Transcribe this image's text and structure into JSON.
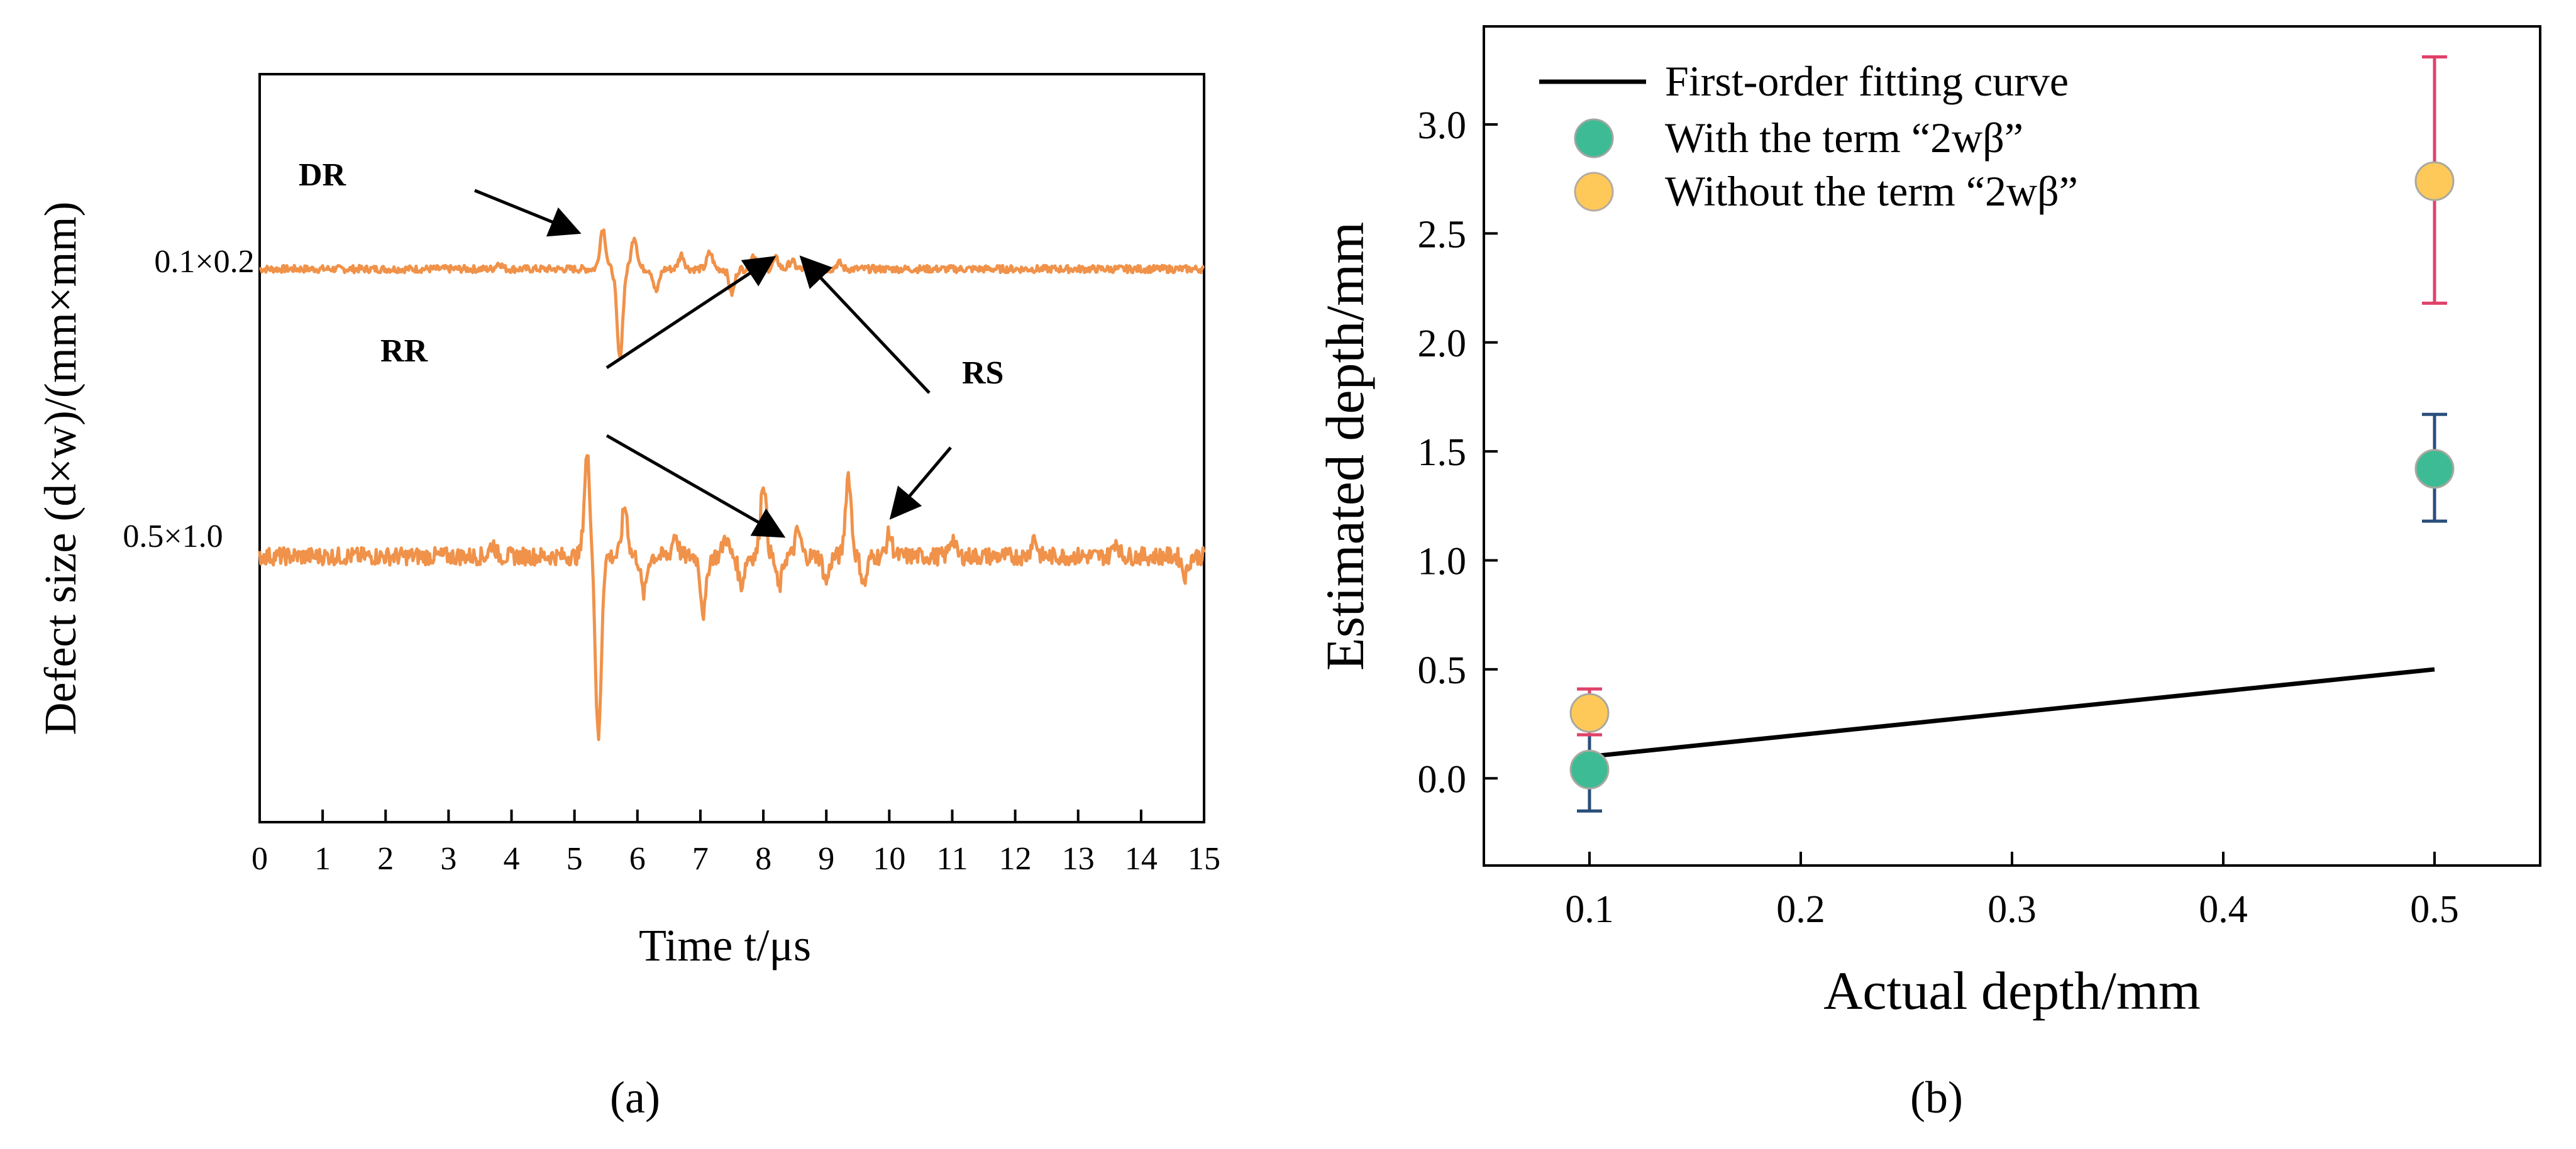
{
  "chart_data": [
    {
      "type": "line",
      "panel_label": "(a)",
      "xlabel": "Time t/μs",
      "ylabel": "Defect size (d×w)/(mm×mm)",
      "xlim": [
        0,
        15
      ],
      "x_ticks": [
        "0",
        "1",
        "2",
        "3",
        "4",
        "5",
        "6",
        "7",
        "8",
        "9",
        "10",
        "11",
        "12",
        "13",
        "14",
        "15"
      ],
      "y_tick_labels": [
        "0.1×0.2",
        "0.5×1.0"
      ],
      "series": [
        {
          "name": "0.1×0.2",
          "color": "#F0924A",
          "description": "baseline signal with arrivals near 5.4–6.0 μs and 7–9 μs",
          "events": [
            {
              "t": 3.8,
              "amp": 0.15
            },
            {
              "t": 5.45,
              "amp": 1.0
            },
            {
              "t": 5.72,
              "amp": -2.2
            },
            {
              "t": 5.95,
              "amp": 0.8
            },
            {
              "t": 6.3,
              "amp": -0.55
            },
            {
              "t": 6.7,
              "amp": 0.35
            },
            {
              "t": 7.15,
              "amp": 0.4
            },
            {
              "t": 7.5,
              "amp": -0.6
            },
            {
              "t": 7.85,
              "amp": 0.35
            },
            {
              "t": 8.2,
              "amp": 0.25
            },
            {
              "t": 8.45,
              "amp": 0.2
            },
            {
              "t": 8.75,
              "amp": -0.2
            },
            {
              "t": 9.2,
              "amp": 0.15
            }
          ]
        },
        {
          "name": "0.5×1.0",
          "color": "#F0924A",
          "description": "signal with strong arrival near 5.2–5.4 μs and later reflections",
          "events": [
            {
              "t": 3.7,
              "amp": 0.2
            },
            {
              "t": 5.2,
              "amp": 1.6
            },
            {
              "t": 5.38,
              "amp": -2.9
            },
            {
              "t": 5.8,
              "amp": 0.8
            },
            {
              "t": 6.1,
              "amp": -0.6
            },
            {
              "t": 6.6,
              "amp": 0.35
            },
            {
              "t": 7.05,
              "amp": -0.9
            },
            {
              "t": 7.4,
              "amp": 0.3
            },
            {
              "t": 7.65,
              "amp": -0.45
            },
            {
              "t": 8.0,
              "amp": 1.2
            },
            {
              "t": 8.25,
              "amp": -0.5
            },
            {
              "t": 8.55,
              "amp": 0.4
            },
            {
              "t": 9.0,
              "amp": -0.4
            },
            {
              "t": 9.35,
              "amp": 1.3
            },
            {
              "t": 9.6,
              "amp": -0.45
            },
            {
              "t": 10.0,
              "amp": 0.35
            },
            {
              "t": 11.0,
              "amp": 0.3
            },
            {
              "t": 12.3,
              "amp": 0.3
            },
            {
              "t": 13.6,
              "amp": 0.25
            },
            {
              "t": 14.7,
              "amp": -0.3
            }
          ]
        }
      ],
      "annotations": [
        "DR",
        "RR",
        "RS"
      ]
    },
    {
      "type": "scatter",
      "panel_label": "(b)",
      "xlabel": "Actual depth/mm",
      "ylabel": "Estimated depth/mm",
      "xlim": [
        0.05,
        0.55
      ],
      "ylim": [
        -0.4,
        3.45
      ],
      "x_ticks": [
        "0.1",
        "0.2",
        "0.3",
        "0.4",
        "0.5"
      ],
      "y_ticks": [
        "0.0",
        "0.5",
        "1.0",
        "1.5",
        "2.0",
        "2.5",
        "3.0"
      ],
      "series": [
        {
          "name": "First-order fitting curve",
          "kind": "line",
          "color": "#000000",
          "x": [
            0.1,
            0.5
          ],
          "y": [
            0.1,
            0.5
          ]
        },
        {
          "name": "With the term “2wβ”",
          "kind": "scatter",
          "color": "#3DBB94",
          "error_color": "#2A4E7A",
          "x": [
            0.1,
            0.5
          ],
          "y": [
            0.04,
            1.42
          ],
          "err_low": [
            -0.15,
            1.18
          ],
          "err_high": [
            0.2,
            1.67
          ]
        },
        {
          "name": "Without the term “2wβ”",
          "kind": "scatter",
          "color": "#FFC95A",
          "error_color": "#E0426A",
          "x": [
            0.1,
            0.5
          ],
          "y": [
            0.3,
            2.74
          ],
          "err_low": [
            0.2,
            2.18
          ],
          "err_high": [
            0.41,
            3.31
          ]
        }
      ],
      "legend": "top-left"
    }
  ]
}
